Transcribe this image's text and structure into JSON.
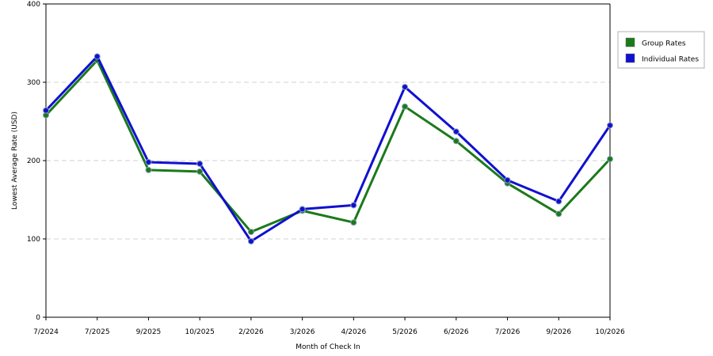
{
  "chart_data": {
    "type": "line",
    "xlabel": "Month of Check In",
    "ylabel": "Lowest Average Rate (USD)",
    "categories": [
      "7/2024",
      "7/2025",
      "9/2025",
      "10/2025",
      "2/2026",
      "3/2026",
      "4/2026",
      "5/2026",
      "6/2026",
      "7/2026",
      "9/2026",
      "10/2026"
    ],
    "ylim": [
      0,
      400
    ],
    "yticks": [
      0,
      100,
      200,
      300,
      400
    ],
    "grid": "horizontal-dashed",
    "legend_position": "right",
    "series": [
      {
        "name": "Group Rates",
        "color": "#1a7a1a",
        "values": [
          258,
          328,
          188,
          186,
          109,
          136,
          121,
          269,
          225,
          171,
          132,
          202
        ]
      },
      {
        "name": "Individual Rates",
        "color": "#1010d0",
        "values": [
          264,
          333,
          198,
          196,
          97,
          138,
          143,
          294,
          237,
          175,
          148,
          245
        ]
      }
    ]
  }
}
